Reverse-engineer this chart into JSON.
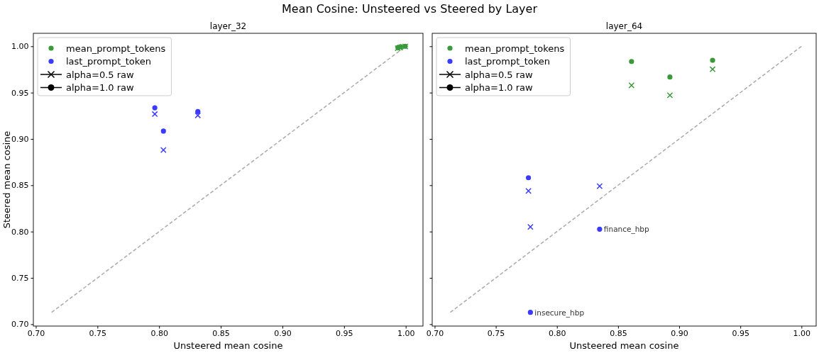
{
  "chart_data": [
    {
      "type": "scatter",
      "title": "Mean Cosine: Unsteered vs Steered by Layer",
      "subtitle": "layer_32",
      "xlabel": "Unsteered mean cosine",
      "ylabel": "Steered mean cosine",
      "xlim": [
        0.698,
        1.014
      ],
      "ylim": [
        0.698,
        1.014
      ],
      "xticks": [
        {
          "value": 0.7,
          "label": "0.70"
        },
        {
          "value": 0.75,
          "label": "0.75"
        },
        {
          "value": 0.8,
          "label": "0.80"
        },
        {
          "value": 0.85,
          "label": "0.85"
        },
        {
          "value": 0.9,
          "label": "0.90"
        },
        {
          "value": 0.95,
          "label": "0.95"
        },
        {
          "value": 1.0,
          "label": "1.00"
        }
      ],
      "yticks": [
        {
          "value": 0.7,
          "label": "0.70"
        },
        {
          "value": 0.75,
          "label": "0.75"
        },
        {
          "value": 0.8,
          "label": "0.80"
        },
        {
          "value": 0.85,
          "label": "0.85"
        },
        {
          "value": 0.9,
          "label": "0.90"
        },
        {
          "value": 0.95,
          "label": "0.95"
        },
        {
          "value": 1.0,
          "label": "1.00"
        }
      ],
      "legend": "top left",
      "grid": false,
      "series": [
        {
          "type": "line",
          "color": "#aaaaaa",
          "line_style": "dashed",
          "marker": "none",
          "x": [
            0.7128,
            1.0
          ],
          "values": [
            0.7128,
            1.0
          ]
        },
        {
          "name": "mean_prompt_tokens",
          "color": "#3a9a3a",
          "marker": "circle",
          "x": [
            0.9937,
            0.9958,
            0.9996
          ],
          "values": [
            0.9986,
            0.9995,
            1.0
          ]
        },
        {
          "name": "last_prompt_token",
          "color": "#3b3bff",
          "marker": "circle",
          "x": [
            0.7965,
            0.8035,
            0.8314
          ],
          "values": [
            0.9336,
            0.9085,
            0.9295
          ]
        },
        {
          "color": "#3a9a3a",
          "marker": "cross",
          "x": [
            0.9935,
            0.9955,
            0.9996
          ],
          "values": [
            0.9978,
            0.9986,
            0.9997
          ]
        },
        {
          "color": "#3b3bff",
          "marker": "cross",
          "x": [
            0.7965,
            0.8035,
            0.8314
          ],
          "values": [
            0.9268,
            0.888,
            0.9254
          ]
        },
        {
          "type": "line",
          "name": "alpha=0.5 raw",
          "color": "#000000",
          "marker": "cross"
        },
        {
          "type": "line",
          "name": "alpha=1.0 raw",
          "color": "#000000",
          "marker": "circle"
        }
      ]
    },
    {
      "type": "scatter",
      "subtitle": "layer_64",
      "xlabel": "Unsteered mean cosine",
      "tick_labels": "x",
      "xlim": [
        0.698,
        1.012
      ],
      "ylim": [
        0.698,
        1.014
      ],
      "xticks": [
        {
          "value": 0.7,
          "label": "0.70"
        },
        {
          "value": 0.75,
          "label": "0.75"
        },
        {
          "value": 0.8,
          "label": "0.80"
        },
        {
          "value": 0.85,
          "label": "0.85"
        },
        {
          "value": 0.9,
          "label": "0.90"
        },
        {
          "value": 0.95,
          "label": "0.95"
        },
        {
          "value": 1.0,
          "label": "1.00"
        }
      ],
      "yticks": [
        {
          "value": 0.7,
          "label": null
        },
        {
          "value": 0.75,
          "label": null
        },
        {
          "value": 0.8,
          "label": null
        },
        {
          "value": 0.85,
          "label": null
        },
        {
          "value": 0.9,
          "label": null
        },
        {
          "value": 0.95,
          "label": null
        },
        {
          "value": 1.0,
          "label": null
        }
      ],
      "legend": "top left",
      "grid": false,
      "annotations": [
        {
          "text": "finance_hbp",
          "x": 0.8349,
          "y": 0.8026
        },
        {
          "text": "insecure_hbp",
          "x": 0.7783,
          "y": 0.7128
        }
      ],
      "series": [
        {
          "type": "line",
          "color": "#aaaaaa",
          "line_style": "dashed",
          "marker": "none",
          "x": [
            0.7128,
            1.0
          ],
          "values": [
            0.7128,
            1.0
          ]
        },
        {
          "name": "mean_prompt_tokens",
          "color": "#3a9a3a",
          "marker": "circle",
          "x": [
            0.861,
            0.8924,
            0.9273
          ],
          "values": [
            0.9836,
            0.9668,
            0.9849
          ]
        },
        {
          "name": "last_prompt_token",
          "color": "#3b3bff",
          "marker": "circle",
          "x": [
            0.7767,
            0.8349,
            0.7783
          ],
          "values": [
            0.8581,
            0.8026,
            0.7128
          ]
        },
        {
          "color": "#3a9a3a",
          "marker": "cross",
          "x": [
            0.861,
            0.8924,
            0.9273
          ],
          "values": [
            0.9579,
            0.9471,
            0.9752
          ]
        },
        {
          "color": "#3b3bff",
          "marker": "cross",
          "x": [
            0.7767,
            0.8349,
            0.7783
          ],
          "values": [
            0.8439,
            0.849,
            0.805
          ]
        },
        {
          "type": "line",
          "name": "alpha=0.5 raw",
          "color": "#000000",
          "marker": "cross"
        },
        {
          "type": "line",
          "name": "alpha=1.0 raw",
          "color": "#000000",
          "marker": "circle"
        }
      ]
    }
  ]
}
